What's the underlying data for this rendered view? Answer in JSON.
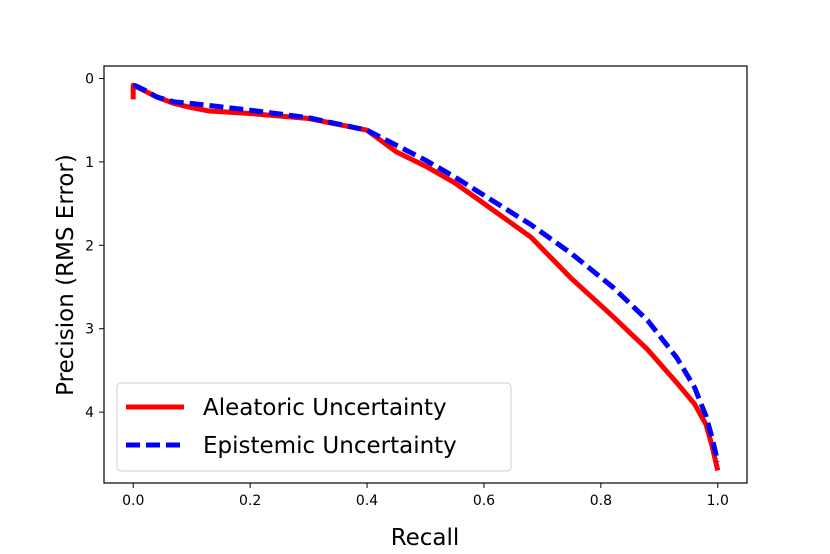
{
  "chart_data": {
    "type": "line",
    "title": "",
    "xlabel": "Recall",
    "ylabel": "Precision (RMS Error)",
    "xlim": [
      -0.05,
      1.05
    ],
    "ylim": [
      4.85,
      -0.15
    ],
    "y_inverted": true,
    "xticks": [
      0.0,
      0.2,
      0.4,
      0.6,
      0.8,
      1.0
    ],
    "xtick_labels": [
      "0.0",
      "0.2",
      "0.4",
      "0.6",
      "0.8",
      "1.0"
    ],
    "yticks": [
      0,
      1,
      2,
      3,
      4
    ],
    "ytick_labels": [
      "0",
      "1",
      "2",
      "3",
      "4"
    ],
    "grid": false,
    "legend_position": "lower-left",
    "series": [
      {
        "name": "Aleatoric Uncertainty",
        "color": "#ff0000",
        "style": "solid",
        "x": [
          0.0,
          0.0,
          0.005,
          0.02,
          0.04,
          0.07,
          0.1,
          0.13,
          0.2,
          0.3,
          0.4,
          0.45,
          0.5,
          0.55,
          0.6,
          0.68,
          0.75,
          0.82,
          0.88,
          0.93,
          0.96,
          0.98,
          0.99,
          1.0
        ],
        "y": [
          0.25,
          0.08,
          0.1,
          0.15,
          0.22,
          0.3,
          0.35,
          0.39,
          0.42,
          0.48,
          0.62,
          0.88,
          1.05,
          1.25,
          1.5,
          1.9,
          2.4,
          2.85,
          3.25,
          3.65,
          3.9,
          4.15,
          4.4,
          4.7
        ]
      },
      {
        "name": "Epistemic Uncertainty",
        "color": "#0000ff",
        "style": "dashed",
        "x": [
          0.0,
          0.005,
          0.02,
          0.04,
          0.07,
          0.1,
          0.2,
          0.3,
          0.4,
          0.45,
          0.5,
          0.55,
          0.6,
          0.68,
          0.75,
          0.82,
          0.88,
          0.93,
          0.96,
          0.98,
          0.99,
          1.0
        ],
        "y": [
          0.08,
          0.09,
          0.14,
          0.22,
          0.28,
          0.3,
          0.38,
          0.47,
          0.62,
          0.8,
          0.98,
          1.18,
          1.4,
          1.75,
          2.1,
          2.5,
          2.9,
          3.35,
          3.7,
          4.05,
          4.3,
          4.6
        ]
      }
    ]
  }
}
